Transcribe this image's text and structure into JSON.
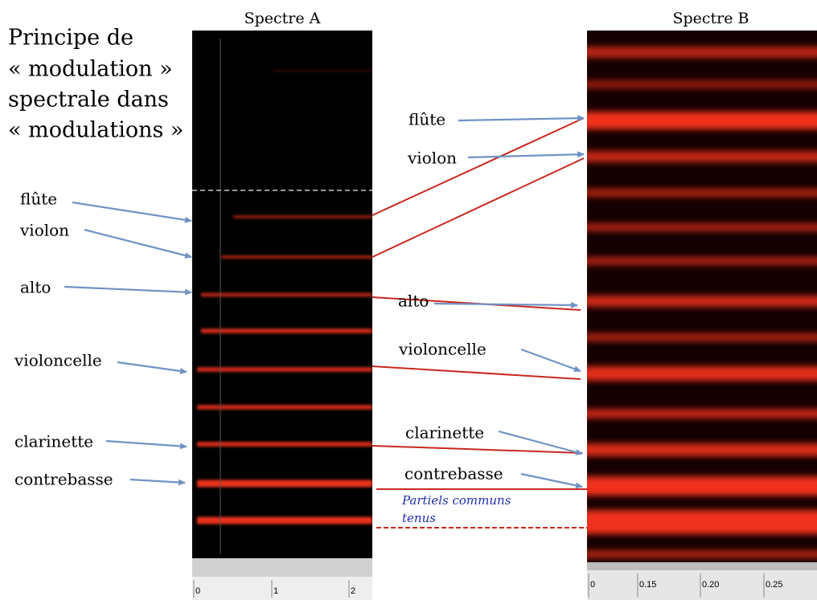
{
  "title_lines": [
    "Principe de",
    "« modulation »",
    "spectrale dans",
    "« modulations »"
  ],
  "spectre_a": {
    "title": "Spectre A",
    "ticks": [
      "0",
      "1",
      "2"
    ]
  },
  "spectre_b": {
    "title": "Spectre B",
    "ticks": [
      "0",
      "0.15",
      "0.20",
      "0.25"
    ]
  },
  "left_labels": [
    "flûte",
    "violon",
    "alto",
    "violoncelle",
    "clarinette",
    "contrebasse"
  ],
  "middle_labels": [
    "flûte",
    "violon",
    "alto",
    "violoncelle",
    "clarinette",
    "contrebasse"
  ],
  "note_lines": [
    "Partiels communs",
    "tenus"
  ]
}
